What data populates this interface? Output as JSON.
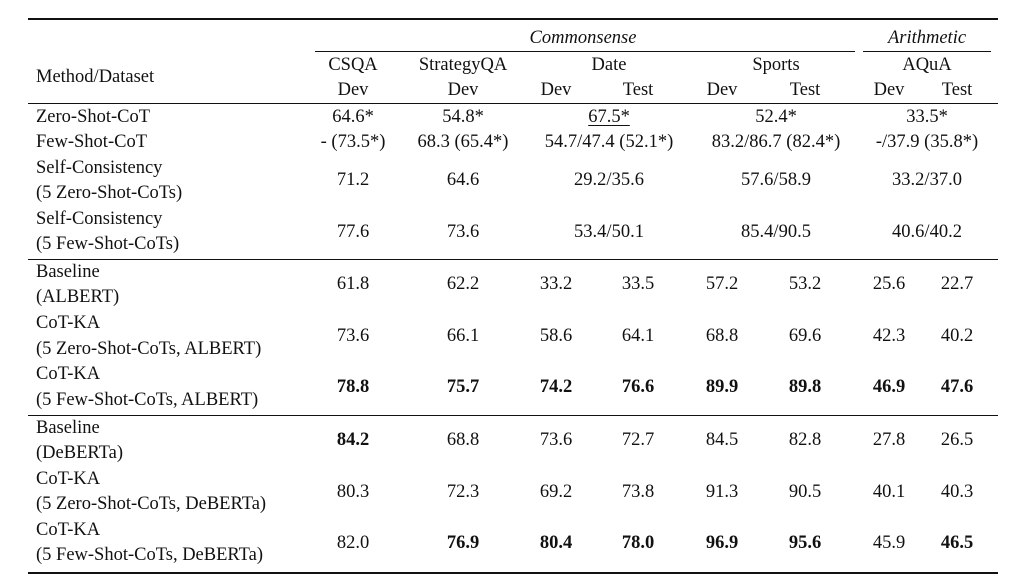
{
  "table": {
    "group_headers": {
      "commonsense": "Commonsense",
      "arithmetic": "Arithmetic"
    },
    "method_header": "Method/Dataset",
    "datasets": [
      {
        "name": "CSQA",
        "splits": [
          "Dev"
        ]
      },
      {
        "name": "StrategyQA",
        "splits": [
          "Dev"
        ]
      },
      {
        "name": "Date",
        "splits": [
          "Dev",
          "Test"
        ]
      },
      {
        "name": "Sports",
        "splits": [
          "Dev",
          "Test"
        ]
      },
      {
        "name": "AQuA",
        "splits": [
          "Dev",
          "Test"
        ]
      }
    ],
    "rows": [
      {
        "method": [
          "Zero-Shot-CoT"
        ],
        "cells": [
          "64.6*",
          "54.8*",
          "67.5*",
          "52.4*",
          "33.5*"
        ]
      },
      {
        "method": [
          "Few-Shot-CoT"
        ],
        "cells": [
          "- (73.5*)",
          "68.3 (65.4*)",
          "54.7/47.4 (52.1*)",
          "83.2/86.7 (82.4*)",
          "-/37.9 (35.8*)"
        ]
      },
      {
        "method": [
          "Self-Consistency",
          "(5 Zero-Shot-CoTs)"
        ],
        "cells": [
          "71.2",
          "64.6",
          "29.2/35.6",
          "57.6/58.9",
          "33.2/37.0"
        ]
      },
      {
        "method": [
          "Self-Consistency",
          "(5 Few-Shot-CoTs)"
        ],
        "cells": [
          "77.6",
          "73.6",
          "53.4/50.1",
          "85.4/90.5",
          "40.6/40.2"
        ]
      },
      {
        "method": [
          "Baseline",
          "(ALBERT)"
        ],
        "cells": [
          "61.8",
          "62.2",
          "33.2",
          "33.5",
          "57.2",
          "53.2",
          "25.6",
          "22.7"
        ]
      },
      {
        "method": [
          "CoT-KA",
          "(5 Zero-Shot-CoTs, ALBERT)"
        ],
        "cells": [
          "73.6",
          "66.1",
          "58.6",
          "64.1",
          "68.8",
          "69.6",
          "42.3",
          "40.2"
        ]
      },
      {
        "method": [
          "CoT-KA",
          "(5 Few-Shot-CoTs, ALBERT)"
        ],
        "cells": [
          "78.8",
          "75.7",
          "74.2",
          "76.6",
          "89.9",
          "89.8",
          "46.9",
          "47.6"
        ]
      },
      {
        "method": [
          "Baseline",
          "(DeBERTa)"
        ],
        "cells": [
          "84.2",
          "68.8",
          "73.6",
          "72.7",
          "84.5",
          "82.8",
          "27.8",
          "26.5"
        ]
      },
      {
        "method": [
          "CoT-KA",
          "(5 Zero-Shot-CoTs, DeBERTa)"
        ],
        "cells": [
          "80.3",
          "72.3",
          "69.2",
          "73.8",
          "91.3",
          "90.5",
          "40.1",
          "40.3"
        ]
      },
      {
        "method": [
          "CoT-KA",
          "(5 Few-Shot-CoTs, DeBERTa)"
        ],
        "cells": [
          "82.0",
          "76.9",
          "80.4",
          "78.0",
          "96.9",
          "95.6",
          "45.9",
          "46.5"
        ]
      }
    ]
  }
}
